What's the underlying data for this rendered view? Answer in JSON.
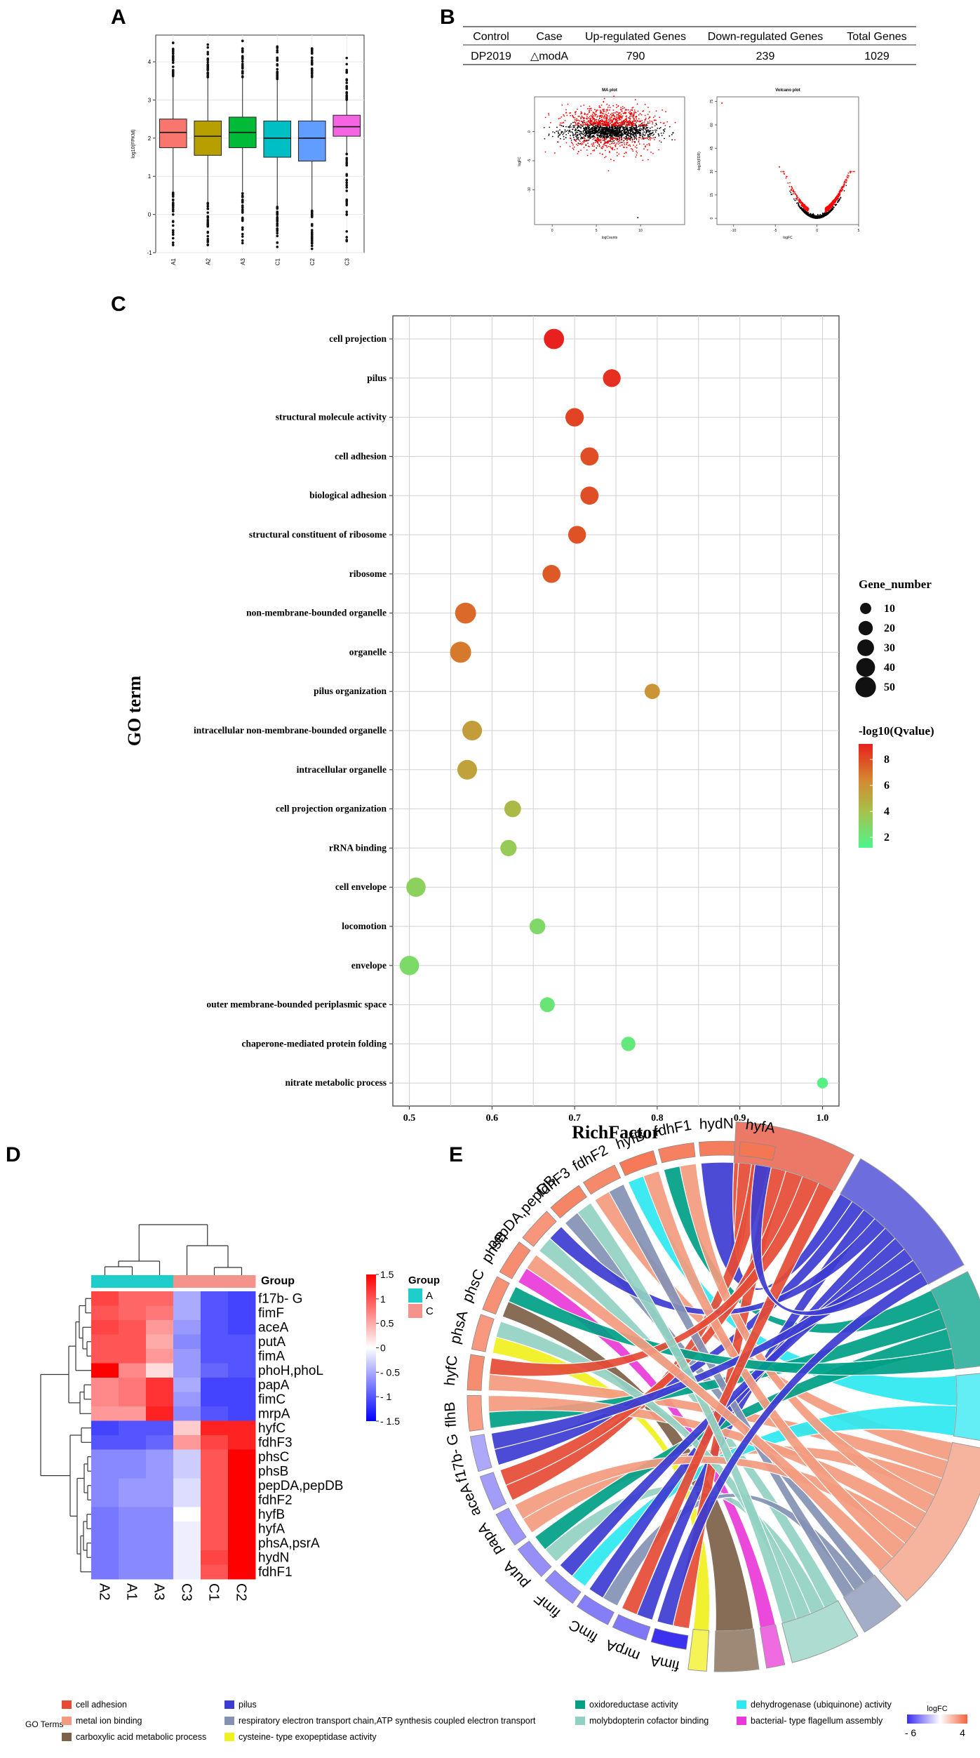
{
  "panel_labels": [
    "A",
    "B",
    "C",
    "D",
    "E"
  ],
  "chart_data": [
    {
      "panel": "A",
      "type": "box",
      "title": "",
      "xlabel": "",
      "ylabel": "log10(FPKM)",
      "ylim": [
        -1,
        4.7
      ],
      "yticks": [
        -1,
        0,
        1,
        2,
        3,
        4
      ],
      "grid": true,
      "categories": [
        "A1",
        "A2",
        "A3",
        "C1",
        "C2",
        "C3"
      ],
      "boxes": [
        {
          "label": "A1",
          "q1": 1.75,
          "median": 2.15,
          "q3": 2.5,
          "lower": 0.6,
          "upper": 3.6,
          "max": 4.5,
          "min": -0.8,
          "color": "#f8766d"
        },
        {
          "label": "A2",
          "q1": 1.55,
          "median": 2.05,
          "q3": 2.45,
          "lower": 0.3,
          "upper": 3.6,
          "max": 4.45,
          "min": -0.8,
          "color": "#b79f00"
        },
        {
          "label": "A3",
          "q1": 1.75,
          "median": 2.15,
          "q3": 2.55,
          "lower": 0.6,
          "upper": 3.6,
          "max": 4.55,
          "min": -0.75,
          "color": "#00ba38"
        },
        {
          "label": "C1",
          "q1": 1.5,
          "median": 2.0,
          "q3": 2.45,
          "lower": 0.2,
          "upper": 3.55,
          "max": 4.4,
          "min": -0.85,
          "color": "#00bfc4"
        },
        {
          "label": "C2",
          "q1": 1.4,
          "median": 2.0,
          "q3": 2.45,
          "lower": 0.1,
          "upper": 3.6,
          "max": 4.35,
          "min": -0.9,
          "color": "#619cff"
        },
        {
          "label": "C3",
          "q1": 2.05,
          "median": 2.3,
          "q3": 2.6,
          "lower": 1.6,
          "upper": 3.0,
          "max": 4.1,
          "min": -0.7,
          "color": "#f564e3"
        }
      ]
    },
    {
      "panel": "B",
      "type": "table",
      "columns": [
        "Control",
        "Case",
        "Up-regulated Genes",
        "Down-regulated Genes",
        "Total Genes"
      ],
      "rows": [
        [
          "DP2019",
          "△modA",
          "790",
          "239",
          "1029"
        ]
      ]
    },
    {
      "panel": "B-MA",
      "type": "scatter",
      "title": "MA plot",
      "xlabel": "logCounts",
      "ylabel": "logFC",
      "xlim": [
        -2,
        15
      ],
      "ylim": [
        -16,
        6
      ],
      "yticks": [
        0,
        -5,
        -10
      ],
      "xticks": [
        0,
        5,
        10
      ],
      "colors": {
        "significant": "#ff0000",
        "non_significant": "#000000"
      }
    },
    {
      "panel": "B-Volcano",
      "type": "scatter",
      "title": "Volcano plot",
      "xlabel": "logFC",
      "ylabel": "-log10(FDR)",
      "xlim": [
        -12,
        5
      ],
      "ylim": [
        -4,
        78
      ],
      "xticks": [
        -10,
        -5,
        0,
        5
      ],
      "yticks": [
        0,
        15,
        30,
        45,
        60,
        75
      ],
      "colors": {
        "significant": "#ff0000",
        "non_significant": "#000000"
      }
    },
    {
      "panel": "C",
      "type": "scatter",
      "title": "",
      "xlabel": "RichFactor",
      "ylabel": "GO term",
      "xlim": [
        0.48,
        1.02
      ],
      "xticks": [
        0.5,
        0.6,
        0.7,
        0.8,
        0.9,
        1.0
      ],
      "xtick_labels": [
        "0.5",
        "0.6",
        "0.7",
        "0.8",
        "0.9",
        "1.0"
      ],
      "grid": true,
      "size_legend": {
        "title": "Gene_number",
        "values": [
          10,
          20,
          30,
          40,
          50
        ]
      },
      "color_legend": {
        "title": "-log10(Qvalue)",
        "ticks": [
          2,
          4,
          6,
          8
        ],
        "range": [
          1.2,
          9.2
        ]
      },
      "terms": [
        {
          "term": "cell projection",
          "rich": 0.675,
          "genes": 48,
          "q": 9.2
        },
        {
          "term": "pilus",
          "rich": 0.745,
          "genes": 35,
          "q": 8.8
        },
        {
          "term": "structural molecule activity",
          "rich": 0.7,
          "genes": 38,
          "q": 8.3
        },
        {
          "term": "cell adhesion",
          "rich": 0.718,
          "genes": 37,
          "q": 8.0
        },
        {
          "term": "biological adhesion",
          "rich": 0.718,
          "genes": 37,
          "q": 8.0
        },
        {
          "term": "structural constituent of ribosome",
          "rich": 0.703,
          "genes": 35,
          "q": 7.9
        },
        {
          "term": "ribosome",
          "rich": 0.672,
          "genes": 36,
          "q": 7.7
        },
        {
          "term": "non-membrane-bounded organelle",
          "rich": 0.568,
          "genes": 52,
          "q": 7.3
        },
        {
          "term": "organelle",
          "rich": 0.562,
          "genes": 53,
          "q": 6.9
        },
        {
          "term": "pilus organization",
          "rich": 0.794,
          "genes": 24,
          "q": 6.0
        },
        {
          "term": "intracellular non-membrane-bounded organelle",
          "rich": 0.576,
          "genes": 45,
          "q": 5.6
        },
        {
          "term": "intracellular organelle",
          "rich": 0.57,
          "genes": 45,
          "q": 5.4
        },
        {
          "term": "cell projection organization",
          "rich": 0.625,
          "genes": 30,
          "q": 4.4
        },
        {
          "term": "rRNA binding",
          "rich": 0.62,
          "genes": 28,
          "q": 3.5
        },
        {
          "term": "cell envelope",
          "rich": 0.508,
          "genes": 43,
          "q": 3.2
        },
        {
          "term": "locomotion",
          "rich": 0.655,
          "genes": 26,
          "q": 2.8
        },
        {
          "term": "envelope",
          "rich": 0.5,
          "genes": 43,
          "q": 2.7
        },
        {
          "term": "outer membrane-bounded periplasmic space",
          "rich": 0.667,
          "genes": 22,
          "q": 2.1
        },
        {
          "term": "chaperone-mediated protein folding",
          "rich": 0.765,
          "genes": 20,
          "q": 1.9
        },
        {
          "term": "nitrate metabolic process",
          "rich": 1.0,
          "genes": 9,
          "q": 1.5
        }
      ]
    },
    {
      "panel": "D",
      "type": "heatmap",
      "columns": [
        "A2",
        "A1",
        "A3",
        "C3",
        "C1",
        "C2"
      ],
      "column_groups": [
        "A",
        "A",
        "A",
        "C",
        "C",
        "C"
      ],
      "group_annotation_label": "Group",
      "group_legend": {
        "title": "Group",
        "items": [
          {
            "name": "A",
            "color": "#1fcecb"
          },
          {
            "name": "C",
            "color": "#f4938b"
          }
        ]
      },
      "scale": {
        "ticks": [
          1.5,
          1,
          0.5,
          0,
          -0.5,
          -1,
          -1.5
        ],
        "labels": [
          "1.5",
          "1",
          "0.5",
          "0",
          "- 0.5",
          "- 1",
          "- 1.5"
        ]
      },
      "genes": [
        "f17b- G",
        "fimF",
        "aceA",
        "putA",
        "fimA",
        "phoH,phoL",
        "papA",
        "fimC",
        "mrpA",
        "hyfC",
        "fdhF3",
        "phsC",
        "phsB",
        "pepDA,pepDB",
        "fdhF2",
        "hyfB",
        "hyfA",
        "phsA,psrA",
        "hydN",
        "fdhF1"
      ],
      "values": [
        [
          1.1,
          0.9,
          0.9,
          -0.5,
          -1.0,
          -1.1
        ],
        [
          1.0,
          0.9,
          0.8,
          -0.5,
          -1.0,
          -1.1
        ],
        [
          1.1,
          1.0,
          0.6,
          -0.6,
          -1.0,
          -1.1
        ],
        [
          1.0,
          1.0,
          0.5,
          -0.7,
          -1.0,
          -1.0
        ],
        [
          1.0,
          1.0,
          0.6,
          -0.6,
          -1.0,
          -1.0
        ],
        [
          1.5,
          0.7,
          0.2,
          -0.6,
          -0.9,
          -1.0
        ],
        [
          0.7,
          0.8,
          1.2,
          -0.5,
          -1.1,
          -1.1
        ],
        [
          0.7,
          0.8,
          1.2,
          -0.6,
          -1.1,
          -1.1
        ],
        [
          0.6,
          0.6,
          1.3,
          -0.7,
          -1.0,
          -1.1
        ],
        [
          -1.1,
          -1.0,
          -1.0,
          0.3,
          1.3,
          1.3
        ],
        [
          -1.0,
          -1.0,
          -0.9,
          0.6,
          1.1,
          1.3
        ],
        [
          -0.7,
          -0.7,
          -0.6,
          -0.3,
          1.0,
          1.6
        ],
        [
          -0.7,
          -0.7,
          -0.6,
          -0.3,
          1.0,
          1.6
        ],
        [
          -0.7,
          -0.6,
          -0.6,
          -0.2,
          1.0,
          1.6
        ],
        [
          -0.7,
          -0.6,
          -0.6,
          -0.2,
          1.0,
          1.6
        ],
        [
          -0.8,
          -0.7,
          -0.7,
          0.0,
          1.0,
          1.6
        ],
        [
          -0.8,
          -0.7,
          -0.7,
          -0.1,
          1.0,
          1.6
        ],
        [
          -0.8,
          -0.7,
          -0.7,
          -0.1,
          1.0,
          1.6
        ],
        [
          -0.8,
          -0.7,
          -0.7,
          -0.1,
          1.1,
          1.6
        ],
        [
          -0.8,
          -0.7,
          -0.7,
          -0.1,
          1.0,
          1.6
        ]
      ]
    },
    {
      "panel": "E",
      "type": "chord",
      "genes": [
        "hyfA",
        "hydN",
        "fdhF1",
        "hyfB",
        "fdhF2",
        "fdhF3",
        "pepDA,pepDB",
        "phsB",
        "phsC",
        "phsA",
        "hyfC",
        "flhB",
        "f17b- G",
        "aceA",
        "papA",
        "putA",
        "fimF",
        "fimC",
        "mrpA",
        "fimA"
      ],
      "gene_logfc": [
        3.5,
        3.3,
        3.2,
        3.4,
        3.0,
        3.1,
        2.7,
        2.9,
        2.8,
        2.6,
        2.9,
        2.5,
        -2.5,
        -2.8,
        -3.0,
        -3.2,
        -3.4,
        -3.7,
        -3.9,
        -5.9
      ],
      "logfc_legend": {
        "title": "logFC",
        "min_label": "- 6",
        "max_label": "4"
      },
      "terms_title": "GO Terms",
      "terms": [
        {
          "name": "cell adhesion",
          "color": "#e64b35",
          "weight": 5
        },
        {
          "name": "pilus",
          "color": "#3c3cd2",
          "weight": 6
        },
        {
          "name": "oxidoreductase activity",
          "color": "#00a087",
          "weight": 4
        },
        {
          "name": "dehydrogenase (ubiquinone) activity",
          "color": "#2ee8f0",
          "weight": 3
        },
        {
          "name": "metal ion binding",
          "color": "#f39b7f",
          "weight": 7
        },
        {
          "name": "respiratory electron transport chain,ATP synthesis coupled electron transport",
          "color": "#8491b4",
          "weight": 2
        },
        {
          "name": "molybdopterin cofactor binding",
          "color": "#91d1c2",
          "weight": 3
        },
        {
          "name": "bacterial- type flagellum assembly",
          "color": "#e83ad8",
          "weight": 1
        },
        {
          "name": "carboxylic acid metabolic process",
          "color": "#7e6148",
          "weight": 2
        },
        {
          "name": "cysteine- type exopeptidase activity",
          "color": "#f0f01e",
          "weight": 1
        }
      ]
    }
  ]
}
